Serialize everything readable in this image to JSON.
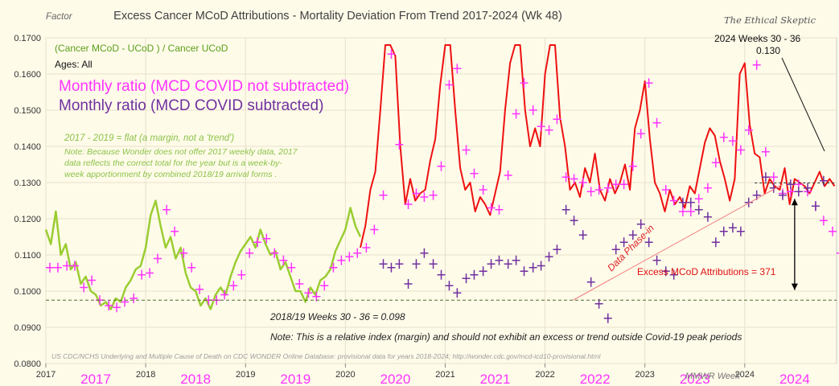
{
  "chart_data": {
    "type": "line",
    "title": "Excess Cancer  MCoD Attributions - Mortality Deviation  From Trend  2017-2024 (Wk 48)",
    "ylabel": "Factor",
    "xlabel": "MMWR Week",
    "watermark": "The Ethical Skeptic",
    "formula": "(Cancer MCoD - UCoD ) / Cancer UCoD",
    "ages": "Ages: All",
    "legend": [
      {
        "label": "Monthly ratio (MCD COVID not subtracted)",
        "color": "#ff33ff"
      },
      {
        "label": "Monthly ratio (MCD COVID subtracted)",
        "color": "#7030a0"
      }
    ],
    "ylim": [
      0.08,
      0.17
    ],
    "yticks": [
      "0.0800",
      "0.0900",
      "0.1000",
      "0.1100",
      "0.1200",
      "0.1300",
      "0.1400",
      "0.1500",
      "0.1600",
      "0.1700"
    ],
    "year_ticks": [
      "2017",
      "2018",
      "2019",
      "2020",
      "2021",
      "2022",
      "2023",
      "2024"
    ],
    "year_labels": [
      "2017",
      "2018",
      "2019",
      "2020",
      "2021",
      "2022",
      "2023",
      "2024"
    ],
    "annotations": {
      "flat_title": "2017 - 2019 = flat (a margin, not a 'trend')",
      "flat_note": [
        "Note:  Because Wonder does not offer 2017 weekly data, 2017",
        "data reflects  the correct  total for the year but is a week-by-",
        "week  apportionment  by combined 2018/19 arrival forms ."
      ],
      "baseline": "2018/19  Weeks 30 - 36  =  0.098",
      "relative_note": "Note: This is a relative index (margin) and should  not exhibit an excess or trend outside Covid-19  peak periods",
      "source": "US CDC/NCHS Underlying and Multiple Cause of Death on CDC WONDER Online Database: provisional data for years 2018-2024; http://wonder.cdc.gov/mcd-icd10-provisional.html",
      "phase_in": "Data Phase-in",
      "excess": "Excess MCoD Attributions =   371",
      "recent_label": "2024  Weeks 30 - 36",
      "recent_value": "0.130"
    },
    "baseline_value": 0.0975,
    "recent_value_line": 0.1299,
    "series": [
      {
        "name": "Weekly ratio 2017-2020 (green)",
        "color": "#9acd32",
        "x": [
          2017.0,
          2017.05,
          2017.1,
          2017.15,
          2017.2,
          2017.25,
          2017.3,
          2017.35,
          2017.4,
          2017.45,
          2017.5,
          2017.55,
          2017.6,
          2017.65,
          2017.7,
          2017.75,
          2017.8,
          2017.85,
          2017.9,
          2017.95,
          2018.0,
          2018.05,
          2018.1,
          2018.15,
          2018.2,
          2018.25,
          2018.3,
          2018.35,
          2018.4,
          2018.45,
          2018.5,
          2018.55,
          2018.6,
          2018.65,
          2018.7,
          2018.75,
          2018.8,
          2018.85,
          2018.9,
          2018.95,
          2019.0,
          2019.05,
          2019.1,
          2019.15,
          2019.2,
          2019.25,
          2019.3,
          2019.35,
          2019.4,
          2019.45,
          2019.5,
          2019.55,
          2019.6,
          2019.65,
          2019.7,
          2019.75,
          2019.8,
          2019.85,
          2019.9,
          2019.95,
          2020.0,
          2020.05,
          2020.1,
          2020.15
        ],
        "y": [
          0.117,
          0.113,
          0.122,
          0.11,
          0.113,
          0.106,
          0.108,
          0.102,
          0.104,
          0.1,
          0.099,
          0.096,
          0.097,
          0.095,
          0.098,
          0.097,
          0.101,
          0.103,
          0.106,
          0.107,
          0.112,
          0.121,
          0.125,
          0.118,
          0.112,
          0.115,
          0.109,
          0.112,
          0.105,
          0.101,
          0.1,
          0.096,
          0.098,
          0.095,
          0.099,
          0.101,
          0.099,
          0.104,
          0.108,
          0.111,
          0.113,
          0.115,
          0.112,
          0.117,
          0.113,
          0.11,
          0.111,
          0.106,
          0.108,
          0.104,
          0.1,
          0.1,
          0.097,
          0.101,
          0.099,
          0.103,
          0.104,
          0.106,
          0.111,
          0.114,
          0.117,
          0.123,
          0.118,
          0.115
        ]
      },
      {
        "name": "Weekly ratio 2020-2024 (red)",
        "color": "#ee1111",
        "x": [
          2020.15,
          2020.2,
          2020.25,
          2020.3,
          2020.35,
          2020.4,
          2020.45,
          2020.5,
          2020.55,
          2020.6,
          2020.65,
          2020.7,
          2020.75,
          2020.8,
          2020.85,
          2020.9,
          2020.95,
          2021.0,
          2021.05,
          2021.1,
          2021.15,
          2021.2,
          2021.25,
          2021.3,
          2021.35,
          2021.4,
          2021.45,
          2021.5,
          2021.55,
          2021.6,
          2021.65,
          2021.7,
          2021.75,
          2021.8,
          2021.85,
          2021.9,
          2021.95,
          2022.0,
          2022.05,
          2022.1,
          2022.15,
          2022.2,
          2022.25,
          2022.3,
          2022.35,
          2022.4,
          2022.45,
          2022.5,
          2022.55,
          2022.6,
          2022.65,
          2022.7,
          2022.75,
          2022.8,
          2022.85,
          2022.9,
          2022.95,
          2023.0,
          2023.05,
          2023.1,
          2023.15,
          2023.2,
          2023.25,
          2023.3,
          2023.35,
          2023.4,
          2023.45,
          2023.5,
          2023.55,
          2023.6,
          2023.65,
          2023.7,
          2023.75,
          2023.8,
          2023.85,
          2023.9,
          2023.95,
          2024.0,
          2024.05,
          2024.1,
          2024.15,
          2024.2,
          2024.25,
          2024.3,
          2024.35,
          2024.4,
          2024.45,
          2024.5,
          2024.55,
          2024.6,
          2024.65,
          2024.7,
          2024.75,
          2024.8,
          2024.85,
          2024.9
        ],
        "y": [
          0.112,
          0.118,
          0.128,
          0.133,
          0.15,
          0.168,
          0.168,
          0.165,
          0.14,
          0.124,
          0.131,
          0.125,
          0.127,
          0.128,
          0.136,
          0.142,
          0.157,
          0.168,
          0.168,
          0.15,
          0.134,
          0.128,
          0.13,
          0.122,
          0.126,
          0.124,
          0.121,
          0.127,
          0.133,
          0.15,
          0.163,
          0.168,
          0.168,
          0.15,
          0.14,
          0.145,
          0.14,
          0.16,
          0.168,
          0.168,
          0.148,
          0.14,
          0.128,
          0.13,
          0.126,
          0.134,
          0.13,
          0.138,
          0.128,
          0.125,
          0.131,
          0.127,
          0.13,
          0.135,
          0.128,
          0.145,
          0.15,
          0.158,
          0.142,
          0.13,
          0.127,
          0.122,
          0.128,
          0.124,
          0.126,
          0.123,
          0.129,
          0.127,
          0.134,
          0.141,
          0.145,
          0.143,
          0.136,
          0.131,
          0.125,
          0.131,
          0.16,
          0.163,
          0.146,
          0.138,
          0.137,
          0.127,
          0.131,
          0.129,
          0.128,
          0.134,
          0.124,
          0.131,
          0.13,
          0.129,
          0.127,
          0.13,
          0.133,
          0.129,
          0.131,
          0.129
        ]
      },
      {
        "name": "Monthly ratio (MCD COVID not subtracted)",
        "color": "#ff33ff",
        "marker": "+",
        "x": [
          2017.04,
          2017.12,
          2017.21,
          2017.29,
          2017.38,
          2017.46,
          2017.54,
          2017.63,
          2017.71,
          2017.79,
          2017.88,
          2017.96,
          2018.04,
          2018.12,
          2018.21,
          2018.29,
          2018.38,
          2018.46,
          2018.54,
          2018.63,
          2018.71,
          2018.79,
          2018.88,
          2018.96,
          2019.04,
          2019.12,
          2019.21,
          2019.29,
          2019.38,
          2019.46,
          2019.54,
          2019.63,
          2019.71,
          2019.79,
          2019.88,
          2019.96,
          2020.04,
          2020.12,
          2020.21,
          2020.29,
          2020.38,
          2020.46,
          2020.54,
          2020.63,
          2020.71,
          2020.79,
          2020.88,
          2020.96,
          2021.04,
          2021.12,
          2021.21,
          2021.29,
          2021.38,
          2021.46,
          2021.54,
          2021.63,
          2021.71,
          2021.79,
          2021.88,
          2021.96,
          2022.04,
          2022.12,
          2022.21,
          2022.29,
          2022.38,
          2022.46,
          2022.54,
          2022.63,
          2022.71,
          2022.79,
          2022.88,
          2022.96,
          2023.04,
          2023.12,
          2023.21,
          2023.29,
          2023.38,
          2023.46,
          2023.54,
          2023.63,
          2023.71,
          2023.79,
          2023.88,
          2023.96,
          2024.04,
          2024.12,
          2024.21,
          2024.29,
          2024.38,
          2024.46,
          2024.54,
          2024.63,
          2024.71,
          2024.79,
          2024.88,
          2024.96
        ],
        "y": [
          0.1065,
          0.1065,
          0.107,
          0.107,
          0.101,
          0.103,
          0.0975,
          0.096,
          0.0955,
          0.097,
          0.098,
          0.1045,
          0.105,
          0.109,
          0.1225,
          0.1165,
          0.1105,
          0.1065,
          0.1005,
          0.0975,
          0.0975,
          0.099,
          0.1015,
          0.1045,
          0.1105,
          0.1135,
          0.1145,
          0.1105,
          0.1085,
          0.1065,
          0.102,
          0.0995,
          0.0985,
          0.1015,
          0.1065,
          0.1085,
          0.1095,
          0.1105,
          0.112,
          0.117,
          0.1265,
          0.1655,
          0.1405,
          0.124,
          0.127,
          0.126,
          0.1265,
          0.1345,
          0.157,
          0.1615,
          0.139,
          0.1325,
          0.128,
          0.123,
          0.1225,
          0.132,
          0.149,
          0.1575,
          0.15,
          0.1455,
          0.1445,
          0.1475,
          0.1315,
          0.131,
          0.13,
          0.1275,
          0.128,
          0.1285,
          0.1295,
          0.1295,
          0.1345,
          0.1435,
          0.1575,
          0.1465,
          0.128,
          0.125,
          0.122,
          0.122,
          0.1255,
          0.1285,
          0.1355,
          0.1425,
          0.1415,
          0.139,
          0.1445,
          0.1625,
          0.1385,
          0.1315,
          0.127,
          0.1275,
          0.1295,
          0.1275,
          0.1235,
          0.1195,
          0.1165,
          0.1105
        ]
      },
      {
        "name": "Monthly ratio (MCD COVID subtracted)",
        "color": "#7030a0",
        "marker": "+",
        "x": [
          2020.38,
          2020.46,
          2020.54,
          2020.63,
          2020.71,
          2020.79,
          2020.88,
          2020.96,
          2021.04,
          2021.12,
          2021.21,
          2021.29,
          2021.38,
          2021.46,
          2021.54,
          2021.63,
          2021.71,
          2021.79,
          2021.88,
          2021.96,
          2022.04,
          2022.12,
          2022.21,
          2022.29,
          2022.38,
          2022.46,
          2022.54,
          2022.63,
          2022.71,
          2022.79,
          2022.88,
          2022.96,
          2023.04,
          2023.12,
          2023.21,
          2023.29,
          2023.38,
          2023.46,
          2023.54,
          2023.63,
          2023.71,
          2023.79,
          2023.88,
          2023.96,
          2024.04,
          2024.12,
          2024.21,
          2024.29,
          2024.38,
          2024.46,
          2024.54,
          2024.63,
          2024.71,
          2024.79
        ],
        "y": [
          0.1075,
          0.1065,
          0.1075,
          0.102,
          0.1075,
          0.1105,
          0.1075,
          0.1045,
          0.1015,
          0.0995,
          0.1035,
          0.1045,
          0.1055,
          0.1075,
          0.1085,
          0.1075,
          0.1085,
          0.1055,
          0.1065,
          0.107,
          0.1095,
          0.1115,
          0.1225,
          0.1195,
          0.1155,
          0.1025,
          0.0965,
          0.0925,
          0.1115,
          0.1135,
          0.1155,
          0.1185,
          0.1135,
          0.1085,
          0.1055,
          0.1045,
          0.1245,
          0.1245,
          0.1225,
          0.1205,
          0.1135,
          0.1165,
          0.1175,
          0.1165,
          0.1245,
          0.1265,
          0.1315,
          0.1285,
          0.1265,
          0.1295,
          0.1275,
          0.1285,
          0.1235,
          0.1305
        ]
      }
    ]
  }
}
